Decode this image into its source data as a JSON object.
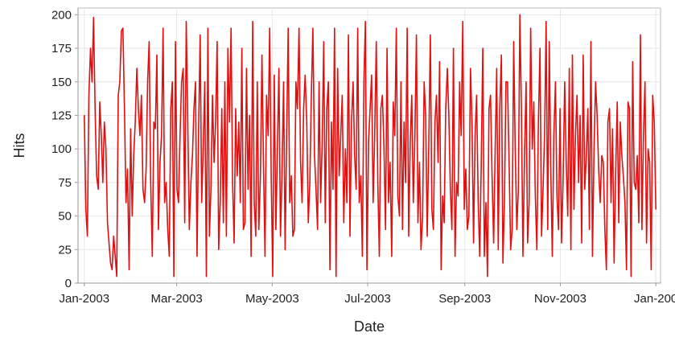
{
  "chart_data": {
    "type": "line",
    "title": "",
    "xlabel": "Date",
    "ylabel": "Hits",
    "ylim": [
      0,
      205
    ],
    "xlim": [
      "2002-12-28",
      "2004-01-04"
    ],
    "grid": true,
    "legend": "none",
    "line_color": "#e01010",
    "y_ticks": [
      0,
      25,
      50,
      75,
      100,
      125,
      150,
      175,
      200
    ],
    "x_ticks": [
      {
        "date": "2003-01-01",
        "label": "Jan-2003"
      },
      {
        "date": "2003-03-01",
        "label": "Mar-2003"
      },
      {
        "date": "2003-05-01",
        "label": "May-2003"
      },
      {
        "date": "2003-07-01",
        "label": "Jul-2003"
      },
      {
        "date": "2003-09-01",
        "label": "Sep-2003"
      },
      {
        "date": "2003-11-01",
        "label": "Nov-2003"
      },
      {
        "date": "2004-01-01",
        "label": "Jan-200"
      }
    ],
    "series": [
      {
        "x_start": "2003-01-01",
        "x_end": "2004-01-01",
        "values": [
          125,
          55,
          35,
          140,
          175,
          150,
          198,
          130,
          80,
          70,
          135,
          110,
          75,
          120,
          100,
          45,
          30,
          15,
          10,
          35,
          20,
          5,
          140,
          150,
          188,
          190,
          130,
          60,
          85,
          10,
          115,
          50,
          95,
          120,
          160,
          130,
          110,
          140,
          70,
          60,
          85,
          150,
          180,
          75,
          20,
          120,
          115,
          170,
          40,
          90,
          110,
          190,
          60,
          75,
          40,
          20,
          130,
          150,
          5,
          180,
          70,
          60,
          110,
          150,
          160,
          45,
          195,
          120,
          40,
          75,
          95,
          130,
          150,
          20,
          115,
          185,
          60,
          100,
          150,
          5,
          190,
          35,
          70,
          140,
          90,
          120,
          180,
          25,
          60,
          130,
          45,
          150,
          35,
          175,
          120,
          190,
          75,
          30,
          130,
          80,
          120,
          60,
          175,
          40,
          45,
          160,
          70,
          125,
          20,
          195,
          60,
          35,
          150,
          40,
          80,
          170,
          90,
          20,
          140,
          110,
          190,
          80,
          5,
          155,
          40,
          100,
          160,
          35,
          80,
          150,
          25,
          110,
          190,
          60,
          80,
          35,
          40,
          150,
          130,
          190,
          90,
          60,
          130,
          155,
          120,
          45,
          75,
          140,
          190,
          95,
          70,
          40,
          150,
          60,
          105,
          180,
          45,
          130,
          150,
          10,
          120,
          70,
          190,
          5,
          160,
          80,
          110,
          140,
          45,
          100,
          60,
          185,
          35,
          120,
          150,
          95,
          70,
          190,
          60,
          80,
          20,
          150,
          195,
          10,
          105,
          130,
          155,
          60,
          110,
          180,
          75,
          20,
          130,
          140,
          100,
          40,
          175,
          60,
          90,
          20,
          135,
          110,
          190,
          65,
          50,
          150,
          40,
          120,
          75,
          190,
          35,
          105,
          140,
          60,
          110,
          185,
          45,
          90,
          25,
          50,
          150,
          125,
          35,
          100,
          185,
          55,
          40,
          120,
          140,
          90,
          165,
          10,
          65,
          45,
          130,
          160,
          125,
          70,
          40,
          175,
          20,
          75,
          65,
          150,
          110,
          195,
          55,
          85,
          40,
          50,
          160,
          120,
          30,
          110,
          140,
          60,
          20,
          90,
          175,
          20,
          60,
          5,
          130,
          140,
          80,
          30,
          100,
          160,
          25,
          130,
          170,
          15,
          60,
          150,
          150,
          90,
          25,
          40,
          180,
          100,
          40,
          70,
          200,
          130,
          20,
          95,
          150,
          30,
          60,
          190,
          100,
          135,
          65,
          25,
          120,
          175,
          35,
          70,
          110,
          195,
          40,
          180,
          85,
          20,
          110,
          150,
          65,
          40,
          130,
          30,
          80,
          150,
          90,
          50,
          160,
          25,
          170,
          55,
          110,
          140,
          75,
          125,
          30,
          170,
          70,
          95,
          130,
          40,
          180,
          20,
          100,
          150,
          125,
          85,
          60,
          95,
          90,
          40,
          10,
          120,
          130,
          60,
          115,
          15,
          80,
          135,
          45,
          120,
          95,
          80,
          60,
          10,
          135,
          130,
          5,
          165,
          75,
          70,
          95,
          45,
          185,
          40,
          110,
          150,
          30,
          100,
          90,
          10,
          140,
          120,
          55
        ]
      }
    ]
  }
}
